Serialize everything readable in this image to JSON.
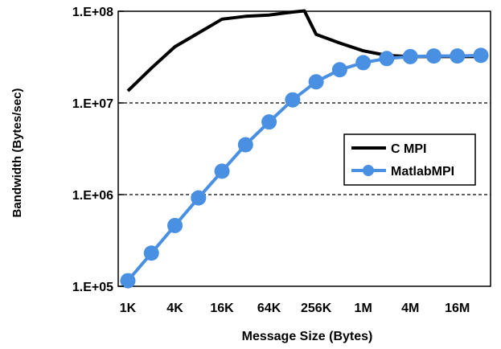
{
  "chart_data": {
    "type": "line",
    "title": "",
    "xlabel": "Message Size (Bytes)",
    "ylabel": "Bandwidth (Bytes/sec)",
    "x_scale": "log2",
    "y_scale": "log10",
    "xlim_log2": [
      10,
      25
    ],
    "ylim": [
      100000,
      100000000
    ],
    "x_ticks": [
      {
        "log2": 10,
        "label": "1K"
      },
      {
        "log2": 12,
        "label": "4K"
      },
      {
        "log2": 14,
        "label": "16K"
      },
      {
        "log2": 16,
        "label": "64K"
      },
      {
        "log2": 18,
        "label": "256K"
      },
      {
        "log2": 20,
        "label": "1M"
      },
      {
        "log2": 22,
        "label": "4M"
      },
      {
        "log2": 24,
        "label": "16M"
      }
    ],
    "y_ticks": [
      {
        "value": 100000,
        "label": "1.E+05"
      },
      {
        "value": 1000000,
        "label": "1.E+06"
      },
      {
        "value": 10000000,
        "label": "1.E+07"
      },
      {
        "value": 100000000,
        "label": "1.E+08"
      }
    ],
    "gridlines": "horizontal dashed at 1.E+06 and 1.E+07",
    "legend": {
      "position": "center-right"
    },
    "series": [
      {
        "name": "C MPI",
        "color": "#000000",
        "marker": "none",
        "x_log2": [
          10,
          11,
          12,
          13,
          14,
          15,
          16,
          17,
          17.5,
          18,
          19,
          20,
          21,
          22,
          23,
          24,
          25
        ],
        "values": [
          13500000,
          24000000,
          41000000,
          58000000,
          82000000,
          88000000,
          91000000,
          98000000,
          101000000,
          56000000,
          45000000,
          37000000,
          33000000,
          32000000,
          32000000,
          32000000,
          32000000
        ]
      },
      {
        "name": "MatlabMPI",
        "color": "#4a90e2",
        "marker": "circle",
        "x_log2": [
          10,
          11,
          12,
          13,
          14,
          15,
          16,
          17,
          18,
          19,
          20,
          21,
          22,
          23,
          24,
          25
        ],
        "values": [
          115000,
          230000,
          460000,
          920000,
          1800000,
          3500000,
          6200000,
          10800000,
          17000000,
          23000000,
          27500000,
          30500000,
          32000000,
          32500000,
          32500000,
          33000000
        ]
      }
    ]
  }
}
